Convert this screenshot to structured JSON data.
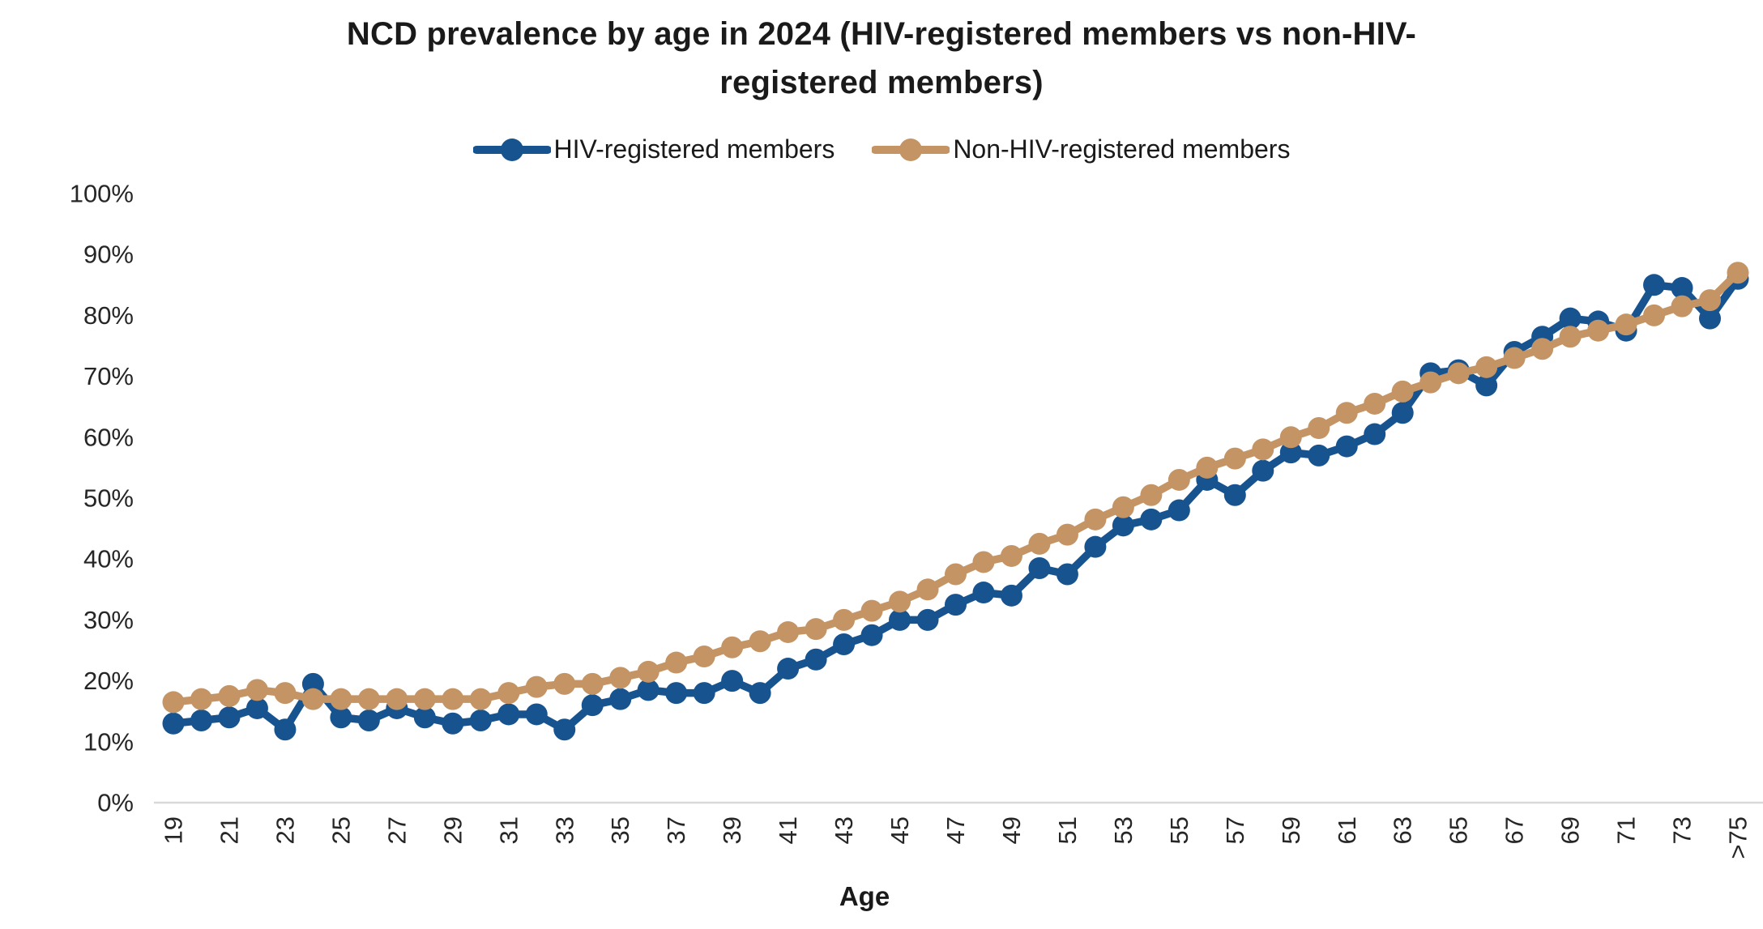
{
  "title": "NCD prevalence by age in 2024  (HIV-registered members vs non-HIV-registered members)",
  "chart_data": {
    "type": "line",
    "title": "NCD prevalence by age in 2024  (HIV-registered members vs non-HIV-registered members)",
    "xlabel": "Age",
    "ylabel": "",
    "ylim": [
      0,
      100
    ],
    "grid": false,
    "legend_position": "top",
    "y_ticks": [
      "0%",
      "10%",
      "20%",
      "30%",
      "40%",
      "50%",
      "60%",
      "70%",
      "80%",
      "90%",
      "100%"
    ],
    "x_tick_step": 2,
    "categories": [
      "19",
      "20",
      "21",
      "22",
      "23",
      "24",
      "25",
      "26",
      "27",
      "28",
      "29",
      "30",
      "31",
      "32",
      "33",
      "34",
      "35",
      "36",
      "37",
      "38",
      "39",
      "40",
      "41",
      "42",
      "43",
      "44",
      "45",
      "46",
      "47",
      "48",
      "49",
      "50",
      "51",
      "52",
      "53",
      "54",
      "55",
      "56",
      "57",
      "58",
      "59",
      "60",
      "61",
      "62",
      "63",
      "64",
      "65",
      "66",
      "67",
      "68",
      "69",
      "70",
      "71",
      "72",
      "73",
      "74",
      ">75"
    ],
    "series": [
      {
        "name": "HIV-registered members",
        "color": "#16538F",
        "values": [
          13,
          13.5,
          14,
          15.5,
          12,
          19.5,
          14,
          13.5,
          15.5,
          14,
          13,
          13.5,
          14.5,
          14.5,
          12,
          16,
          17,
          18.5,
          18,
          18,
          20,
          18,
          22,
          23.5,
          26,
          27.5,
          30,
          30,
          32.5,
          34.5,
          34,
          38.5,
          37.5,
          42,
          45.5,
          46.5,
          48,
          53,
          50.5,
          54.5,
          57.5,
          57,
          58.5,
          60.5,
          64,
          70.5,
          71,
          68.5,
          74,
          76.5,
          79.5,
          79,
          77.5,
          85,
          84.5,
          79.5,
          86
        ]
      },
      {
        "name": "Non-HIV-registered members",
        "color": "#C49465",
        "values": [
          16.5,
          17,
          17.5,
          18.5,
          18,
          17,
          17,
          17,
          17,
          17,
          17,
          17,
          18,
          19,
          19.5,
          19.5,
          20.5,
          21.5,
          23,
          24,
          25.5,
          26.5,
          28,
          28.5,
          30,
          31.5,
          33,
          35,
          37.5,
          39.5,
          40.5,
          42.5,
          44,
          46.5,
          48.5,
          50.5,
          53,
          55,
          56.5,
          58,
          60,
          61.5,
          64,
          65.5,
          67.5,
          69,
          70.5,
          71.5,
          73,
          74.5,
          76.5,
          77.5,
          78.5,
          80,
          81.5,
          82.5,
          87
        ]
      }
    ],
    "axis_line_color": "#D9D9D9"
  }
}
